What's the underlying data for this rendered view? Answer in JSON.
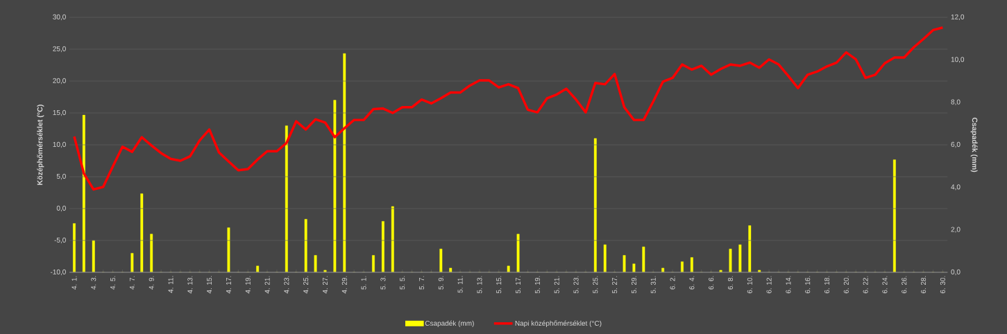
{
  "chart_data": {
    "type": "bar",
    "categories": [
      "4. 1.",
      null,
      "4. 3.",
      null,
      "4. 5.",
      null,
      "4. 7.",
      null,
      "4. 9.",
      null,
      "4. 11.",
      null,
      "4. 13.",
      null,
      "4. 15.",
      null,
      "4. 17.",
      null,
      "4. 19.",
      null,
      "4. 21.",
      null,
      "4. 23.",
      null,
      "4. 25.",
      null,
      "4. 27.",
      null,
      "4. 29.",
      null,
      "5. 1.",
      null,
      "5. 3.",
      null,
      "5. 5.",
      null,
      "5. 7.",
      null,
      "5. 9.",
      null,
      "5. 11.",
      null,
      "5. 13.",
      null,
      "5. 15.",
      null,
      "5. 17.",
      null,
      "5. 19.",
      null,
      "5. 21.",
      null,
      "5. 23.",
      null,
      "5. 25.",
      null,
      "5. 27.",
      null,
      "5. 29.",
      null,
      "5. 31.",
      null,
      "6. 2.",
      null,
      "6. 4.",
      null,
      "6. 6.",
      null,
      "6. 8.",
      null,
      "6. 10.",
      null,
      "6. 12.",
      null,
      "6. 14.",
      null,
      "6. 16.",
      null,
      "6. 18.",
      null,
      "6. 20.",
      null,
      "6. 22.",
      null,
      "6. 24.",
      null,
      "6. 26.",
      null,
      "6. 28.",
      null,
      "6. 30."
    ],
    "series": [
      {
        "name": "Csapadék (mm)",
        "axis": "y2",
        "color": "#ffff00",
        "values": [
          2.3,
          7.4,
          1.5,
          0,
          0,
          0,
          0.9,
          3.7,
          1.8,
          0,
          0,
          0,
          0,
          0,
          0,
          0,
          2.1,
          0,
          0,
          0.3,
          0,
          0,
          6.9,
          0,
          2.5,
          0.8,
          0.1,
          8.1,
          10.3,
          0,
          0,
          0.8,
          2.4,
          3.1,
          0,
          0,
          0,
          0,
          1.1,
          0.2,
          0,
          0,
          0,
          0,
          0,
          0.3,
          1.8,
          0,
          0,
          0,
          0,
          0,
          0,
          0,
          6.3,
          1.3,
          0,
          0.8,
          0.4,
          1.2,
          0,
          0.2,
          0,
          0.5,
          0.7,
          0,
          0,
          0.1,
          1.1,
          1.3,
          2.2,
          0.1,
          0,
          0,
          0,
          0,
          0,
          0,
          0,
          0,
          0,
          0,
          0,
          0,
          0,
          5.3,
          0,
          0,
          0,
          0,
          0
        ]
      },
      {
        "name": "Napi középhőmérséklet (°C)",
        "type": "line",
        "color": "#ff0000",
        "values": [
          11.3,
          5.5,
          3.0,
          3.4,
          6.6,
          9.7,
          8.9,
          11.2,
          9.9,
          8.7,
          7.8,
          7.5,
          8.2,
          10.7,
          12.4,
          8.8,
          7.4,
          6.0,
          6.2,
          7.7,
          9.0,
          9.0,
          10.3,
          13.7,
          12.4,
          14.0,
          13.5,
          11.2,
          12.6,
          13.9,
          13.9,
          15.6,
          15.7,
          15.0,
          15.9,
          15.9,
          17.1,
          16.5,
          17.3,
          18.2,
          18.2,
          19.3,
          20.1,
          20.1,
          19.0,
          19.5,
          18.9,
          15.5,
          15.1,
          17.3,
          17.9,
          18.8,
          17.1,
          15.1,
          19.7,
          19.5,
          21.1,
          15.9,
          13.9,
          13.9,
          16.8,
          19.9,
          20.5,
          22.6,
          21.8,
          22.4,
          21.0,
          21.9,
          22.6,
          22.4,
          22.9,
          22.1,
          23.4,
          22.6,
          20.8,
          18.9,
          21.0,
          21.5,
          22.3,
          22.9,
          24.5,
          23.4,
          20.5,
          21.0,
          22.8,
          23.7,
          23.7,
          25.3,
          26.6,
          28.0,
          28.4
        ]
      }
    ],
    "ylabel": "Középhőmérséklet (°C)",
    "y2label": "Csapadék (mm)",
    "ylim": [
      -10,
      30
    ],
    "yticks": [
      {
        "value": -10,
        "label": "-10,0"
      },
      {
        "value": -5,
        "label": "-5,0"
      },
      {
        "value": 0,
        "label": "0,0"
      },
      {
        "value": 5,
        "label": "5,0"
      },
      {
        "value": 10,
        "label": "10,0"
      },
      {
        "value": 15,
        "label": "15,0"
      },
      {
        "value": 20,
        "label": "20,0"
      },
      {
        "value": 25,
        "label": "25,0"
      },
      {
        "value": 30,
        "label": "30,0"
      }
    ],
    "y2lim": [
      0,
      12
    ],
    "y2ticks": [
      {
        "value": 0,
        "label": "0,0"
      },
      {
        "value": 2,
        "label": "2,0"
      },
      {
        "value": 4,
        "label": "4,0"
      },
      {
        "value": 6,
        "label": "6,0"
      },
      {
        "value": 8,
        "label": "8,0"
      },
      {
        "value": 10,
        "label": "10,0"
      },
      {
        "value": 12,
        "label": "12,0"
      }
    ],
    "grid": "y",
    "legend": "bottom"
  }
}
